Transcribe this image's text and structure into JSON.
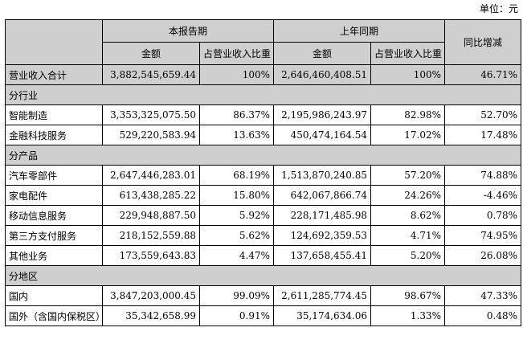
{
  "unit_label": "单位：元",
  "header": {
    "current_period": "本报告期",
    "prior_period": "上年同期",
    "yoy_change": "同比增减",
    "amount": "金额",
    "ratio": "占营业收入比重"
  },
  "total": {
    "label": "营业收入合计",
    "current_amount": "3,882,545,659.44",
    "current_ratio": "100%",
    "prior_amount": "2,646,460,408.51",
    "prior_ratio": "100%",
    "yoy": "46.71%"
  },
  "sections": [
    {
      "title": "分行业",
      "rows": [
        {
          "label": "智能制造",
          "current_amount": "3,353,325,075.50",
          "current_ratio": "86.37%",
          "prior_amount": "2,195,986,243.97",
          "prior_ratio": "82.98%",
          "yoy": "52.70%"
        },
        {
          "label": "金融科技服务",
          "current_amount": "529,220,583.94",
          "current_ratio": "13.63%",
          "prior_amount": "450,474,164.54",
          "prior_ratio": "17.02%",
          "yoy": "17.48%"
        }
      ]
    },
    {
      "title": "分产品",
      "rows": [
        {
          "label": "汽车零部件",
          "current_amount": "2,647,446,283.01",
          "current_ratio": "68.19%",
          "prior_amount": "1,513,870,240.85",
          "prior_ratio": "57.20%",
          "yoy": "74.88%"
        },
        {
          "label": "家电配件",
          "current_amount": "613,438,285.22",
          "current_ratio": "15.80%",
          "prior_amount": "642,067,866.74",
          "prior_ratio": "24.26%",
          "yoy": "-4.46%"
        },
        {
          "label": "移动信息服务",
          "current_amount": "229,948,887.50",
          "current_ratio": "5.92%",
          "prior_amount": "228,171,485.98",
          "prior_ratio": "8.62%",
          "yoy": "0.78%"
        },
        {
          "label": "第三方支付服务",
          "current_amount": "218,152,559.88",
          "current_ratio": "5.62%",
          "prior_amount": "124,692,359.53",
          "prior_ratio": "4.71%",
          "yoy": "74.95%"
        },
        {
          "label": "其他业务",
          "current_amount": "173,559,643.83",
          "current_ratio": "4.47%",
          "prior_amount": "137,658,455.41",
          "prior_ratio": "5.20%",
          "yoy": "26.08%"
        }
      ]
    },
    {
      "title": "分地区",
      "rows": [
        {
          "label": "国内",
          "current_amount": "3,847,203,000.45",
          "current_ratio": "99.09%",
          "prior_amount": "2,611,285,774.45",
          "prior_ratio": "98.67%",
          "yoy": "47.33%"
        },
        {
          "label": "国外（含国内保税区）",
          "current_amount": "35,342,658.99",
          "current_ratio": "0.91%",
          "prior_amount": "35,174,634.06",
          "prior_ratio": "1.33%",
          "yoy": "0.48%"
        }
      ]
    }
  ]
}
